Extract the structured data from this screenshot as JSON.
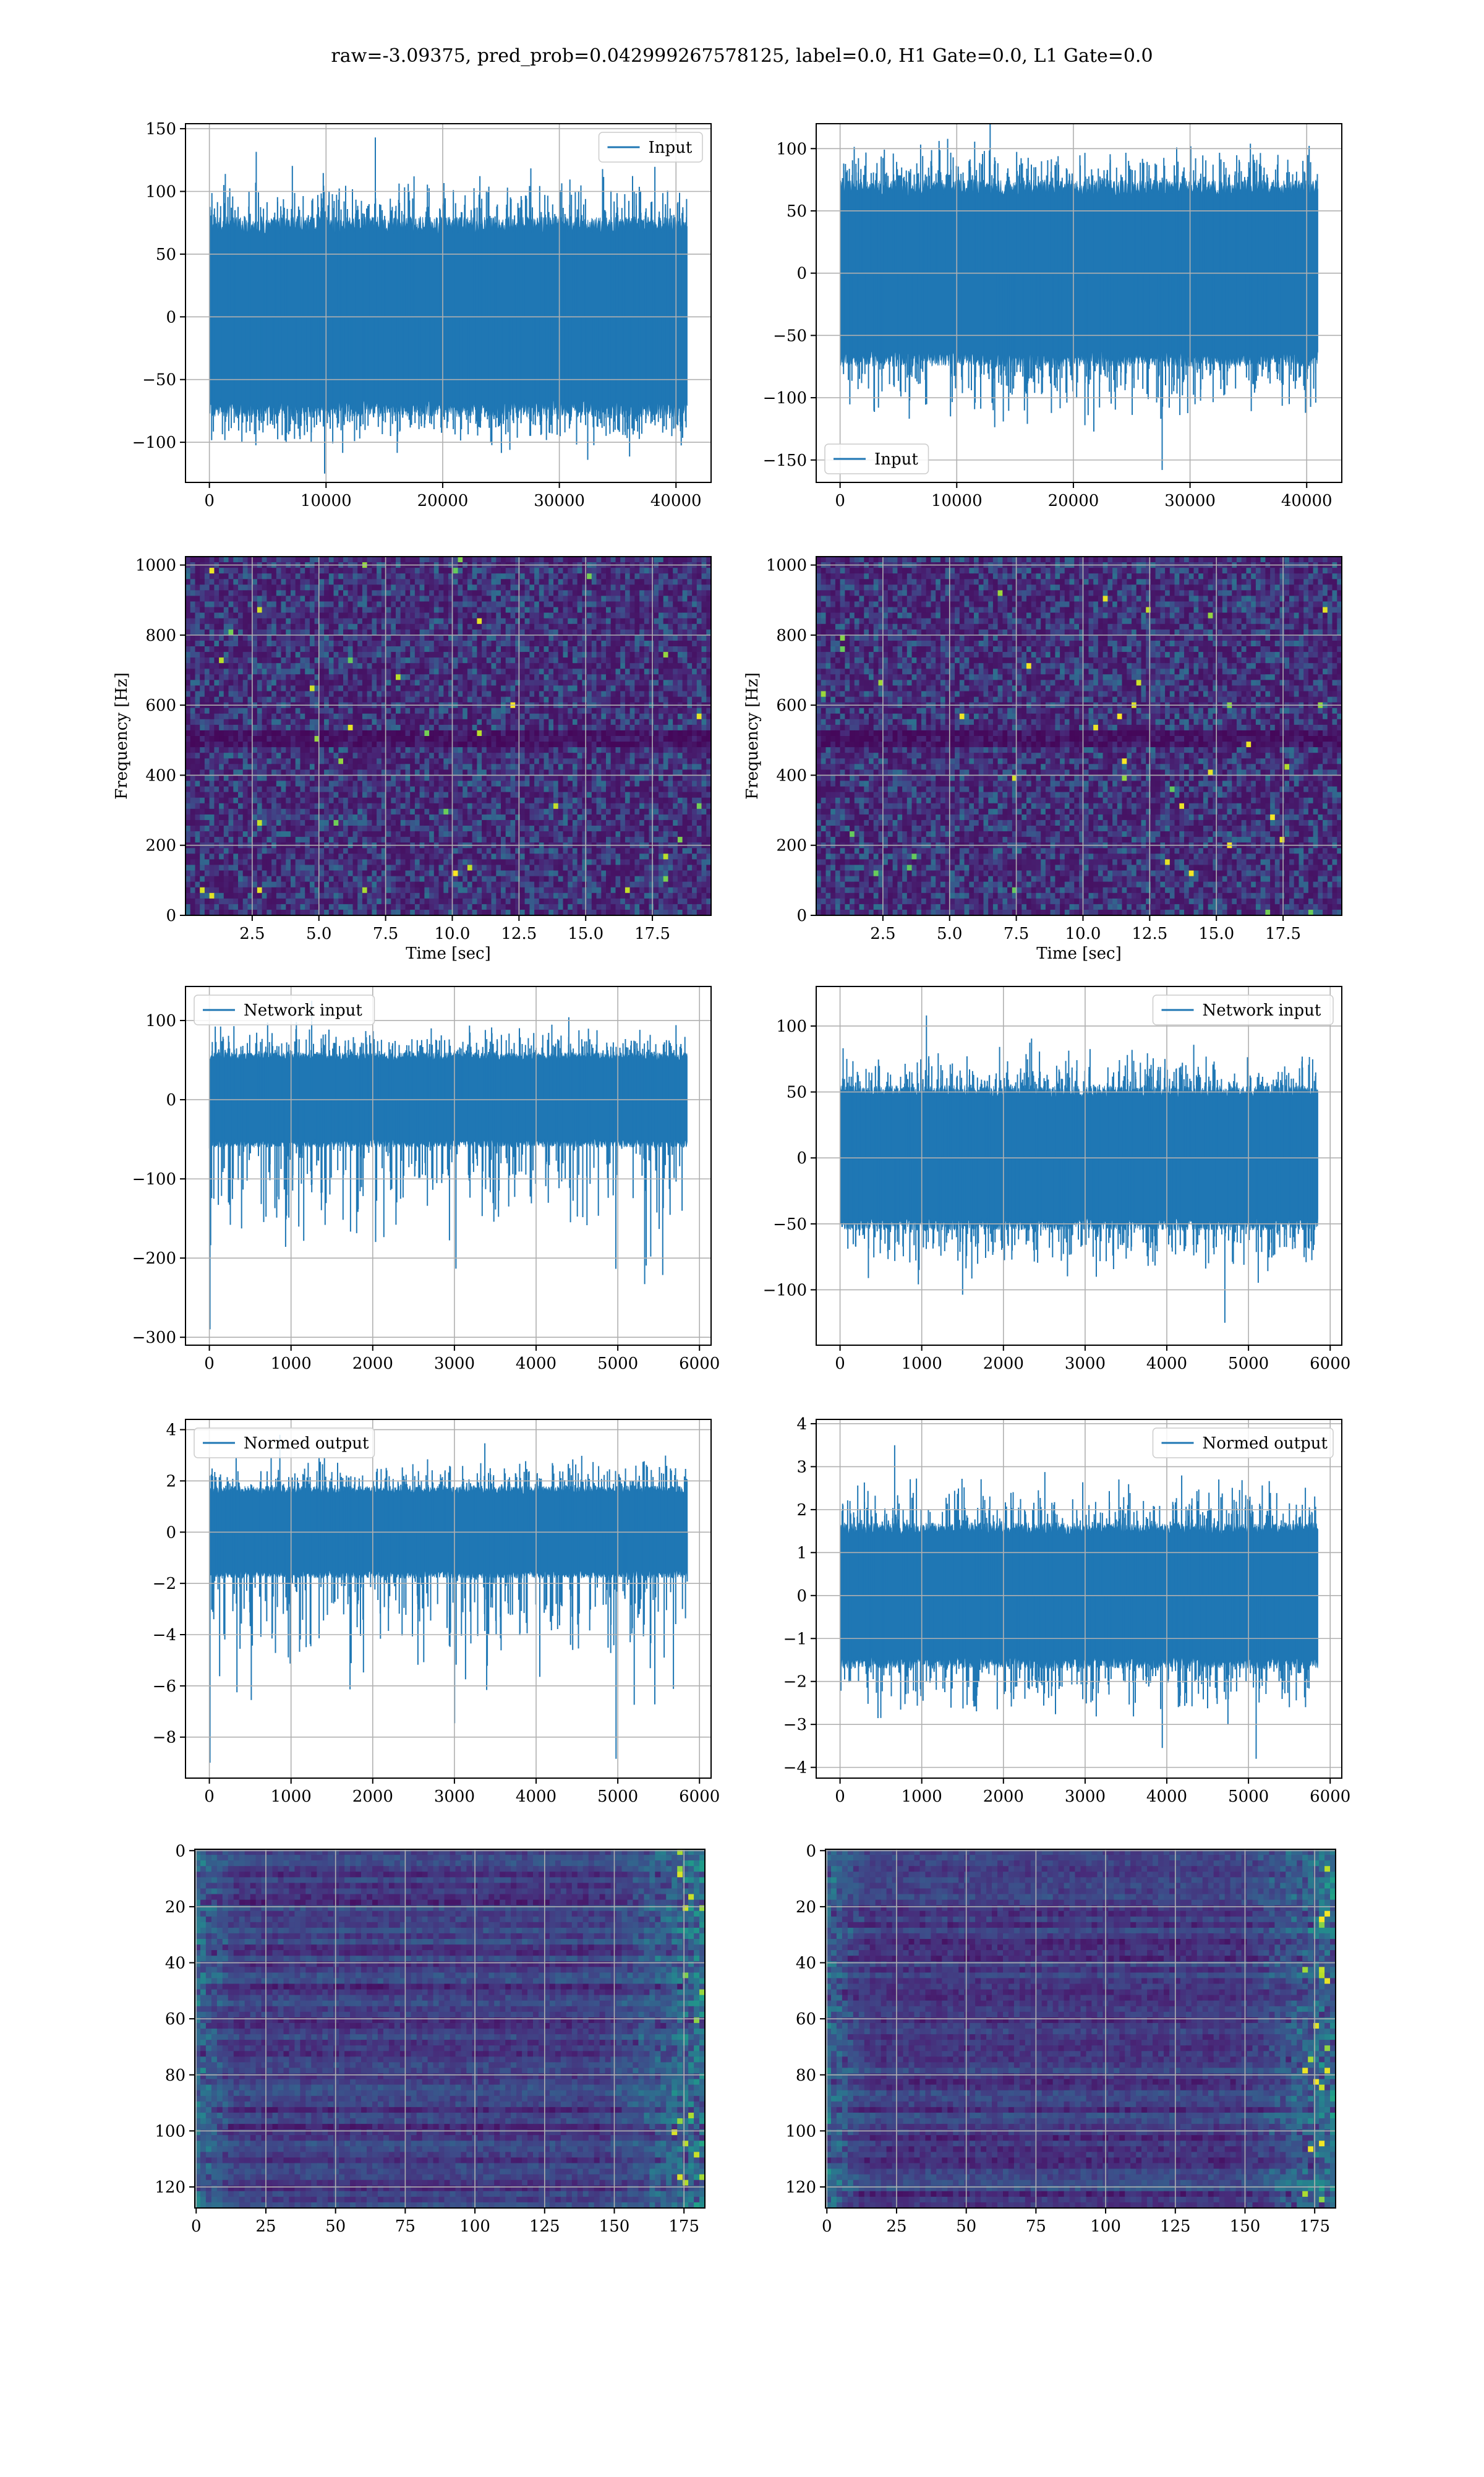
{
  "figure": {
    "suptitle": "raw=-3.09375, pred_prob=0.042999267578125, label=0.0, H1 Gate=0.0, L1 Gate=0.0"
  },
  "colors": {
    "line": "#1f77b4",
    "grid": "#b0b0b0",
    "viridis": [
      "#440154",
      "#482878",
      "#3e4a89",
      "#31688e",
      "#26828e",
      "#1f9e89",
      "#35b779",
      "#6ece58",
      "#b5de2b",
      "#fde725"
    ]
  },
  "chart_data": [
    {
      "id": "r1c1",
      "type": "line",
      "series": [
        {
          "name": "Input",
          "n_samples": 40960
        }
      ],
      "legend": "upper right",
      "xlim": [
        -2048,
        43008
      ],
      "ylim": [
        -132,
        154
      ],
      "xticks": [
        0,
        10000,
        20000,
        30000,
        40000
      ],
      "xticklabels": [
        "0",
        "10000",
        "20000",
        "30000",
        "40000"
      ],
      "yticks": [
        -100,
        -50,
        0,
        50,
        100,
        150
      ],
      "yticklabels": [
        "−100",
        "−50",
        "0",
        "50",
        "100",
        "150"
      ],
      "envelope": {
        "bulk": [
          -80,
          80
        ],
        "peaks": [
          -125,
          143
        ]
      },
      "grid": true,
      "xlabel": "",
      "ylabel": ""
    },
    {
      "id": "r1c2",
      "type": "line",
      "series": [
        {
          "name": "Input",
          "n_samples": 40960
        }
      ],
      "legend": "lower left",
      "xlim": [
        -2048,
        43008
      ],
      "ylim": [
        -168,
        120
      ],
      "xticks": [
        0,
        10000,
        20000,
        30000,
        40000
      ],
      "xticklabels": [
        "0",
        "10000",
        "20000",
        "30000",
        "40000"
      ],
      "yticks": [
        -150,
        -100,
        -50,
        0,
        50,
        100
      ],
      "yticklabels": [
        "−150",
        "−100",
        "−50",
        "0",
        "50",
        "100"
      ],
      "envelope": {
        "bulk": [
          -75,
          75
        ],
        "peaks": [
          -158,
          128
        ]
      },
      "grid": true,
      "xlabel": "",
      "ylabel": ""
    },
    {
      "id": "r2c1",
      "type": "heatmap",
      "colormap": "viridis",
      "xlim": [
        0,
        19.7
      ],
      "ylim": [
        0,
        1024
      ],
      "xticks": [
        2.5,
        5.0,
        7.5,
        10.0,
        12.5,
        15.0,
        17.5
      ],
      "xticklabels": [
        "2.5",
        "5.0",
        "7.5",
        "10.0",
        "12.5",
        "15.0",
        "17.5"
      ],
      "yticks": [
        0,
        200,
        400,
        600,
        800,
        1000
      ],
      "yticklabels": [
        "0",
        "200",
        "400",
        "600",
        "800",
        "1000"
      ],
      "xlabel": "Time [sec]",
      "ylabel": "Frequency [Hz]",
      "grid": true
    },
    {
      "id": "r2c2",
      "type": "heatmap",
      "colormap": "viridis",
      "xlim": [
        0,
        19.7
      ],
      "ylim": [
        0,
        1024
      ],
      "xticks": [
        2.5,
        5.0,
        7.5,
        10.0,
        12.5,
        15.0,
        17.5
      ],
      "xticklabels": [
        "2.5",
        "5.0",
        "7.5",
        "10.0",
        "12.5",
        "15.0",
        "17.5"
      ],
      "yticks": [
        0,
        200,
        400,
        600,
        800,
        1000
      ],
      "yticklabels": [
        "0",
        "200",
        "400",
        "600",
        "800",
        "1000"
      ],
      "xlabel": "Time [sec]",
      "ylabel": "Frequency [Hz]",
      "grid": true
    },
    {
      "id": "r3c1",
      "type": "line",
      "series": [
        {
          "name": "Network input",
          "n_samples": 5850
        }
      ],
      "legend": "upper left",
      "xlim": [
        -292,
        6142
      ],
      "ylim": [
        -310,
        143
      ],
      "xticks": [
        0,
        1000,
        2000,
        3000,
        4000,
        5000,
        6000
      ],
      "xticklabels": [
        "0",
        "1000",
        "2000",
        "3000",
        "4000",
        "5000",
        "6000"
      ],
      "yticks": [
        -300,
        -200,
        -100,
        0,
        100
      ],
      "yticklabels": [
        "−300",
        "−200",
        "−100",
        "0",
        "100"
      ],
      "envelope": {
        "bulk": [
          -60,
          60
        ],
        "peaks": [
          -290,
          125
        ]
      },
      "grid": true,
      "xlabel": "",
      "ylabel": ""
    },
    {
      "id": "r3c2",
      "type": "line",
      "series": [
        {
          "name": "Network input",
          "n_samples": 5850
        }
      ],
      "legend": "upper right",
      "xlim": [
        -292,
        6142
      ],
      "ylim": [
        -142,
        130
      ],
      "xticks": [
        0,
        1000,
        2000,
        3000,
        4000,
        5000,
        6000
      ],
      "xticklabels": [
        "0",
        "1000",
        "2000",
        "3000",
        "4000",
        "5000",
        "6000"
      ],
      "yticks": [
        -100,
        -50,
        0,
        50,
        100
      ],
      "yticklabels": [
        "−100",
        "−50",
        "0",
        "50",
        "100"
      ],
      "envelope": {
        "bulk": [
          -55,
          55
        ],
        "peaks": [
          -125,
          108
        ]
      },
      "grid": true,
      "xlabel": "",
      "ylabel": ""
    },
    {
      "id": "r4c1",
      "type": "line",
      "series": [
        {
          "name": "Normed output",
          "n_samples": 5850
        }
      ],
      "legend": "upper left",
      "xlim": [
        -292,
        6142
      ],
      "ylim": [
        -9.6,
        4.4
      ],
      "xticks": [
        0,
        1000,
        2000,
        3000,
        4000,
        5000,
        6000
      ],
      "xticklabels": [
        "0",
        "1000",
        "2000",
        "3000",
        "4000",
        "5000",
        "6000"
      ],
      "yticks": [
        -8,
        -6,
        -4,
        -2,
        0,
        2,
        4
      ],
      "yticklabels": [
        "−8",
        "−6",
        "−4",
        "−2",
        "0",
        "2",
        "4"
      ],
      "envelope": {
        "bulk": [
          -1.8,
          1.8
        ],
        "peaks": [
          -9.0,
          3.8
        ]
      },
      "grid": true,
      "xlabel": "",
      "ylabel": ""
    },
    {
      "id": "r4c2",
      "type": "line",
      "series": [
        {
          "name": "Normed output",
          "n_samples": 5850
        }
      ],
      "legend": "upper right",
      "xlim": [
        -292,
        6142
      ],
      "ylim": [
        -4.25,
        4.1
      ],
      "xticks": [
        0,
        1000,
        2000,
        3000,
        4000,
        5000,
        6000
      ],
      "xticklabels": [
        "0",
        "1000",
        "2000",
        "3000",
        "4000",
        "5000",
        "6000"
      ],
      "yticks": [
        -4,
        -3,
        -2,
        -1,
        0,
        1,
        2,
        3,
        4
      ],
      "yticklabels": [
        "−4",
        "−3",
        "−2",
        "−1",
        "0",
        "1",
        "2",
        "3",
        "4"
      ],
      "envelope": {
        "bulk": [
          -1.7,
          1.7
        ],
        "peaks": [
          -3.8,
          3.5
        ]
      },
      "grid": true,
      "xlabel": "",
      "ylabel": ""
    },
    {
      "id": "r5c1",
      "type": "heatmap",
      "colormap": "viridis",
      "yaxis_inverted": true,
      "xlim": [
        -0.5,
        182.5
      ],
      "ylim": [
        127.5,
        -0.5
      ],
      "xticks": [
        0,
        25,
        50,
        75,
        100,
        125,
        150,
        175
      ],
      "xticklabels": [
        "0",
        "25",
        "50",
        "75",
        "100",
        "125",
        "150",
        "175"
      ],
      "yticks": [
        0,
        20,
        40,
        60,
        80,
        100,
        120
      ],
      "yticklabels": [
        "0",
        "20",
        "40",
        "60",
        "80",
        "100",
        "120"
      ],
      "xlabel": "",
      "ylabel": "",
      "grid": true
    },
    {
      "id": "r5c2",
      "type": "heatmap",
      "colormap": "viridis",
      "yaxis_inverted": true,
      "xlim": [
        -0.5,
        182.5
      ],
      "ylim": [
        127.5,
        -0.5
      ],
      "xticks": [
        0,
        25,
        50,
        75,
        100,
        125,
        150,
        175
      ],
      "xticklabels": [
        "0",
        "25",
        "50",
        "75",
        "100",
        "125",
        "150",
        "175"
      ],
      "yticks": [
        0,
        20,
        40,
        60,
        80,
        100,
        120
      ],
      "yticklabels": [
        "0",
        "20",
        "40",
        "60",
        "80",
        "100",
        "120"
      ],
      "xlabel": "",
      "ylabel": "",
      "grid": true
    }
  ]
}
